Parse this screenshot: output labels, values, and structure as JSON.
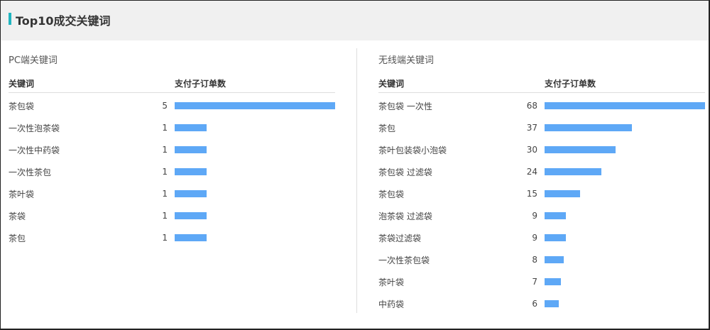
{
  "title": "Top10成交关键词",
  "accent": "#1fb5c0",
  "bar_color": "#5ea8f6",
  "chart_data": [
    {
      "type": "bar",
      "orientation": "horizontal",
      "title": "PC端关键词",
      "col_keyword": "关键词",
      "col_value": "支付子订单数",
      "categories": [
        "茶包袋",
        "一次性泡茶袋",
        "一次性中药袋",
        "一次性茶包",
        "茶叶袋",
        "茶袋",
        "茶包"
      ],
      "values": [
        5,
        1,
        1,
        1,
        1,
        1,
        1
      ]
    },
    {
      "type": "bar",
      "orientation": "horizontal",
      "title": "无线端关键词",
      "col_keyword": "关键词",
      "col_value": "支付子订单数",
      "categories": [
        "茶包袋 一次性",
        "茶包",
        "茶叶包装袋小泡袋",
        "茶包袋 过滤袋",
        "茶包袋",
        "泡茶袋 过滤袋",
        "茶袋过滤袋",
        "一次性茶包袋",
        "茶叶袋",
        "中药袋"
      ],
      "values": [
        68,
        37,
        30,
        24,
        15,
        9,
        9,
        8,
        7,
        6
      ]
    }
  ]
}
